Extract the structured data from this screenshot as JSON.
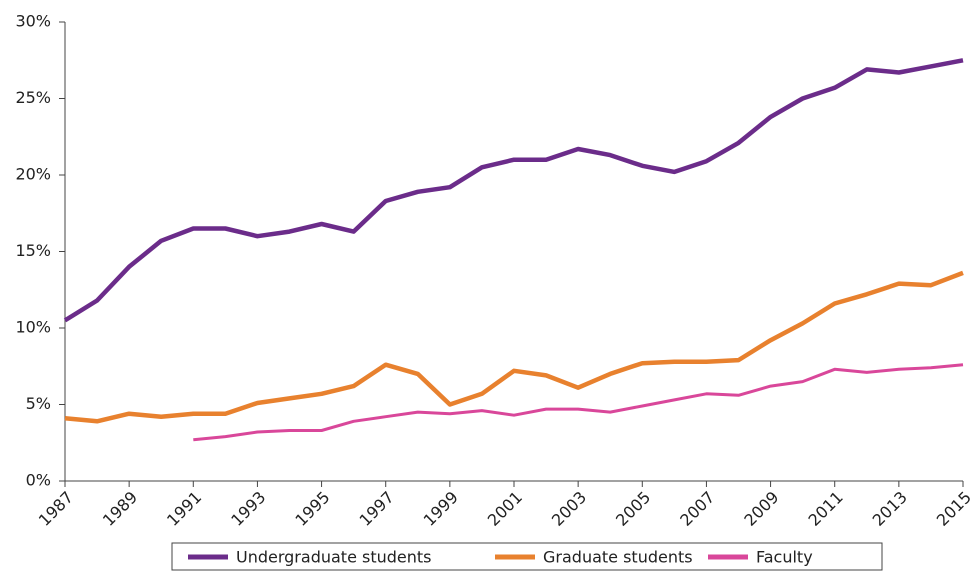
{
  "chart_data": {
    "type": "line",
    "x": [
      1987,
      1988,
      1989,
      1990,
      1991,
      1992,
      1993,
      1994,
      1995,
      1996,
      1997,
      1998,
      1999,
      2000,
      2001,
      2002,
      2003,
      2004,
      2005,
      2006,
      2007,
      2008,
      2009,
      2010,
      2011,
      2012,
      2013,
      2014,
      2015
    ],
    "xlim": [
      1987,
      2015
    ],
    "xticks": [
      1987,
      1989,
      1991,
      1993,
      1995,
      1997,
      1999,
      2001,
      2003,
      2005,
      2007,
      2009,
      2011,
      2013,
      2015
    ],
    "ylim": [
      0,
      30
    ],
    "yticks": [
      {
        "value": 0,
        "label": "0%"
      },
      {
        "value": 5,
        "label": "5%"
      },
      {
        "value": 10,
        "label": "10%"
      },
      {
        "value": 15,
        "label": "15%"
      },
      {
        "value": 20,
        "label": "20%"
      },
      {
        "value": 25,
        "label": "25%"
      },
      {
        "value": 30,
        "label": "30%"
      }
    ],
    "legend": "bottom",
    "series": [
      {
        "name": "Undergraduate students",
        "color": "#6b2c8a",
        "values": [
          10.5,
          11.8,
          14.0,
          15.7,
          16.5,
          16.5,
          16.0,
          16.3,
          16.8,
          16.3,
          18.3,
          18.9,
          19.2,
          20.5,
          21.0,
          21.0,
          21.7,
          21.3,
          20.6,
          20.2,
          20.9,
          22.1,
          23.8,
          25.0,
          25.7,
          26.9,
          26.7,
          27.1,
          27.5
        ]
      },
      {
        "name": "Graduate students",
        "color": "#e8812e",
        "values": [
          4.1,
          3.9,
          4.4,
          4.2,
          4.4,
          4.4,
          5.1,
          5.4,
          5.7,
          6.2,
          7.6,
          7.0,
          5.0,
          5.7,
          7.2,
          6.9,
          6.1,
          7.0,
          7.7,
          7.8,
          7.8,
          7.9,
          9.2,
          10.3,
          11.6,
          12.2,
          12.9,
          12.8,
          13.6
        ]
      },
      {
        "name": "Faculty",
        "color": "#d9479a",
        "values": [
          null,
          null,
          null,
          null,
          2.7,
          2.9,
          3.2,
          3.3,
          3.3,
          3.9,
          4.2,
          4.5,
          4.4,
          4.6,
          4.3,
          4.7,
          4.7,
          4.5,
          4.9,
          5.3,
          5.7,
          5.6,
          6.2,
          6.5,
          7.3,
          7.1,
          7.3,
          7.4,
          7.6
        ]
      }
    ]
  }
}
